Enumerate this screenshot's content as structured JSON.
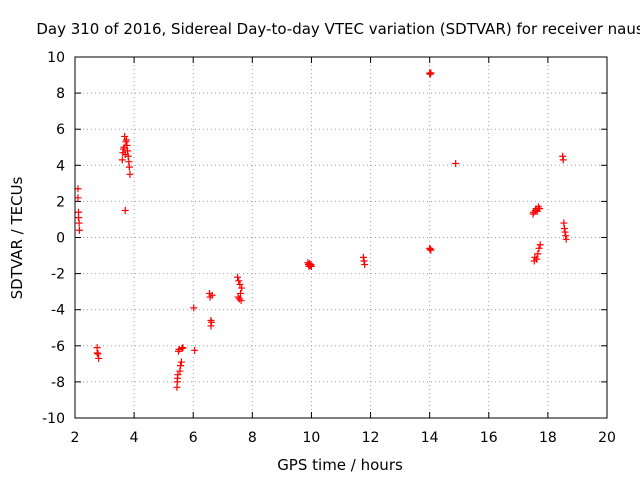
{
  "chart_data": {
    "type": "scatter",
    "title": "Day 310 of 2016, Sidereal Day-to-day VTEC variation (SDTVAR) for receiver naus",
    "xlabel": "GPS time / hours",
    "ylabel": "SDTVAR / TECUs",
    "xlim": [
      2,
      20
    ],
    "ylim": [
      -10,
      10
    ],
    "grid": true,
    "marker": "+",
    "marker_color": "#ff0000",
    "x_ticks": [
      2,
      4,
      6,
      8,
      10,
      12,
      14,
      16,
      18,
      20
    ],
    "y_ticks": [
      -10,
      -8,
      -6,
      -4,
      -2,
      0,
      2,
      4,
      6,
      8,
      10
    ],
    "series": [
      {
        "name": "SDTVAR",
        "points": [
          [
            2.1,
            2.7
          ],
          [
            2.1,
            2.2
          ],
          [
            2.12,
            1.4
          ],
          [
            2.12,
            1.1
          ],
          [
            2.14,
            0.8
          ],
          [
            2.15,
            0.4
          ],
          [
            2.75,
            -6.1
          ],
          [
            2.75,
            -6.4
          ],
          [
            2.78,
            -6.45
          ],
          [
            2.8,
            -6.7
          ],
          [
            3.6,
            4.3
          ],
          [
            3.62,
            4.7
          ],
          [
            3.64,
            4.9
          ],
          [
            3.66,
            5.0
          ],
          [
            3.68,
            5.6
          ],
          [
            3.7,
            4.6
          ],
          [
            3.7,
            1.5
          ],
          [
            3.72,
            5.3
          ],
          [
            3.74,
            5.4
          ],
          [
            3.76,
            5.1
          ],
          [
            3.78,
            4.8
          ],
          [
            3.8,
            4.5
          ],
          [
            3.82,
            4.2
          ],
          [
            3.84,
            3.9
          ],
          [
            3.86,
            3.5
          ],
          [
            5.45,
            -8.3
          ],
          [
            5.46,
            -8.0
          ],
          [
            5.47,
            -7.8
          ],
          [
            5.48,
            -7.6
          ],
          [
            5.5,
            -6.3
          ],
          [
            5.52,
            -6.2
          ],
          [
            5.55,
            -7.4
          ],
          [
            5.57,
            -7.1
          ],
          [
            5.6,
            -6.9
          ],
          [
            5.62,
            -6.15
          ],
          [
            5.65,
            -6.1
          ],
          [
            6.02,
            -3.9
          ],
          [
            6.05,
            -6.25
          ],
          [
            6.55,
            -3.1
          ],
          [
            6.57,
            -3.3
          ],
          [
            6.6,
            -4.6
          ],
          [
            6.6,
            -4.9
          ],
          [
            6.62,
            -4.7
          ],
          [
            6.64,
            -3.2
          ],
          [
            7.5,
            -2.2
          ],
          [
            7.52,
            -3.3
          ],
          [
            7.54,
            -2.4
          ],
          [
            7.56,
            -3.4
          ],
          [
            7.58,
            -2.6
          ],
          [
            7.6,
            -3.1
          ],
          [
            7.62,
            -3.5
          ],
          [
            7.64,
            -2.8
          ],
          [
            9.88,
            -1.4
          ],
          [
            9.9,
            -1.5
          ],
          [
            9.92,
            -1.6
          ],
          [
            9.94,
            -1.45
          ],
          [
            9.96,
            -1.55
          ],
          [
            9.98,
            -1.5
          ],
          [
            10.0,
            -1.6
          ],
          [
            11.76,
            -1.1
          ],
          [
            11.78,
            -1.3
          ],
          [
            11.8,
            -1.5
          ],
          [
            14.0,
            9.1
          ],
          [
            14.02,
            9.05
          ],
          [
            14.04,
            9.12
          ],
          [
            14.0,
            -0.6
          ],
          [
            14.02,
            -0.65
          ],
          [
            14.04,
            -0.7
          ],
          [
            14.88,
            4.1
          ],
          [
            17.5,
            1.3
          ],
          [
            17.52,
            1.4
          ],
          [
            17.54,
            -1.3
          ],
          [
            17.56,
            -1.1
          ],
          [
            17.58,
            1.5
          ],
          [
            17.6,
            1.6
          ],
          [
            17.62,
            -1.2
          ],
          [
            17.64,
            1.45
          ],
          [
            17.66,
            -0.9
          ],
          [
            17.68,
            1.7
          ],
          [
            17.7,
            -0.6
          ],
          [
            17.72,
            1.6
          ],
          [
            17.74,
            -0.4
          ],
          [
            18.5,
            4.5
          ],
          [
            18.52,
            4.3
          ],
          [
            18.54,
            0.8
          ],
          [
            18.56,
            0.5
          ],
          [
            18.58,
            0.3
          ],
          [
            18.6,
            0.1
          ],
          [
            18.62,
            -0.1
          ]
        ]
      }
    ]
  }
}
